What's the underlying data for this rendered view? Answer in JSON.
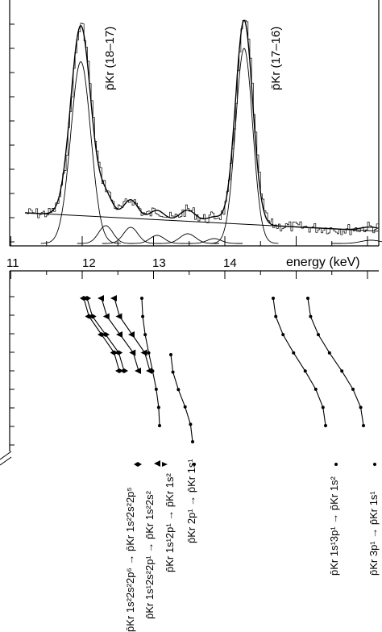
{
  "top_panel": {
    "xlabel": "energy (keV)",
    "xticks": [
      "11",
      "12",
      "13",
      "14"
    ],
    "peak_labels": [
      "p̄Kr (18–17)",
      "p̄Kr (17–16)"
    ]
  },
  "chart_data": {
    "type": "line",
    "xlabel": "energy (keV)",
    "xlim": [
      11,
      16
    ],
    "xticks": [
      11,
      12,
      13,
      14
    ],
    "peaks": [
      {
        "label": "p̄Kr (18–17)",
        "energy_keV": 11.98
      },
      {
        "label": "p̄Kr (17–16)",
        "energy_keV": 14.27
      }
    ],
    "component_centers_keV": [
      11.98,
      12.33,
      12.68,
      13.05,
      13.48,
      13.85,
      14.27,
      16.05
    ]
  },
  "legend": {
    "items": [
      "p̄Kr 1s²2s²2p⁶ → p̄Kr 1s²2s²2p⁵",
      "p̄Kr 1s¹2s²2p¹ → p̄Kr 1s²2s²",
      "p̄Kr 1s¹2p¹ → p̄Kr 1s²",
      "p̄Kr 2p¹ → p̄Kr 1s¹",
      "p̄Kr 1s¹3p¹ → p̄Kr 1s²",
      "p̄Kr 3p¹ → p̄Kr 1s¹"
    ]
  }
}
